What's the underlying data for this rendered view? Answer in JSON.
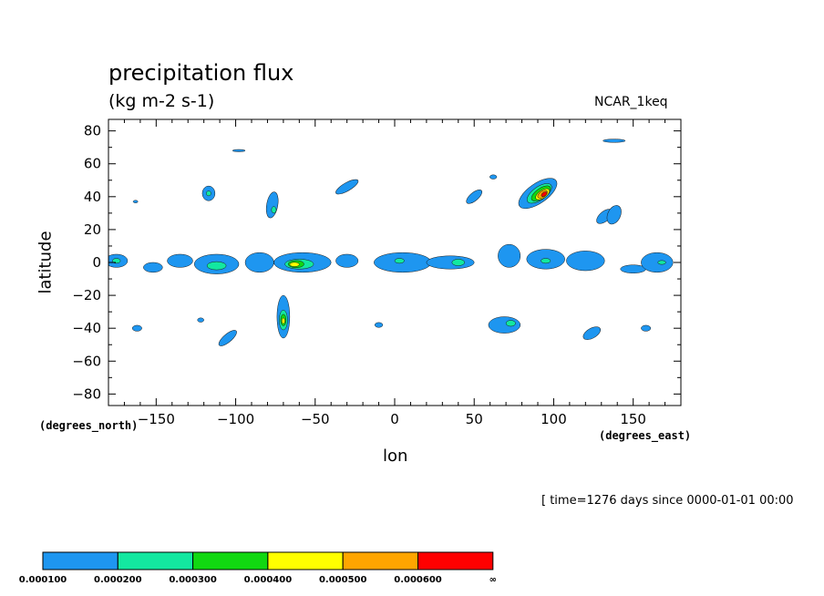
{
  "chart_data": {
    "type": "heatmap",
    "title": "precipitation flux",
    "units": "(kg m-2 s-1)",
    "source_label": "NCAR_1keq",
    "xlabel": "lon",
    "ylabel": "latitude",
    "x_unit_label": "(degrees_east)",
    "y_unit_label": "(degrees_north)",
    "xlim": [
      -180,
      180
    ],
    "ylim": [
      -87,
      87
    ],
    "x_ticks": [
      -150,
      -100,
      -50,
      0,
      50,
      100,
      150
    ],
    "x_tick_labels": [
      "−150",
      "−100",
      "−50",
      "0",
      "50",
      "100",
      "150"
    ],
    "y_ticks": [
      80,
      60,
      40,
      20,
      0,
      -20,
      -40,
      -60,
      -80
    ],
    "y_tick_labels": [
      "80",
      "60",
      "40",
      "20",
      "0",
      "−20",
      "−40",
      "−60",
      "−80"
    ],
    "grid": false,
    "legend": {
      "placement": "bottom-left",
      "colors": [
        "#1e96f0",
        "#13e8a0",
        "#11d811",
        "#ffff00",
        "#ffa500",
        "#ff0000"
      ],
      "boundary_labels": [
        "0.000100",
        "0.000200",
        "0.000300",
        "0.000400",
        "0.000500",
        "0.000600",
        "∞"
      ]
    },
    "regions": [
      {
        "level": 1,
        "lon": 90,
        "lat": 42,
        "rx": 14,
        "ry": 6,
        "rot": -35
      },
      {
        "level": 2,
        "lon": 91,
        "lat": 42,
        "rx": 9,
        "ry": 4,
        "rot": -35
      },
      {
        "level": 3,
        "lon": 92,
        "lat": 42,
        "rx": 7,
        "ry": 3,
        "rot": -35
      },
      {
        "level": 4,
        "lon": 93,
        "lat": 41.5,
        "rx": 5,
        "ry": 2.4,
        "rot": -35
      },
      {
        "level": 5,
        "lon": 93,
        "lat": 41.5,
        "rx": 3.5,
        "ry": 1.8,
        "rot": -35
      },
      {
        "level": 6,
        "lon": 94,
        "lat": 41.5,
        "rx": 2,
        "ry": 1.1,
        "rot": -35
      },
      {
        "level": 1,
        "lon": -70,
        "lat": -33,
        "rx": 4,
        "ry": 13,
        "rot": 0
      },
      {
        "level": 2,
        "lon": -70,
        "lat": -35,
        "rx": 2.6,
        "ry": 6,
        "rot": 0
      },
      {
        "level": 3,
        "lon": -70,
        "lat": -35,
        "rx": 1.7,
        "ry": 3.5,
        "rot": 0
      },
      {
        "level": 4,
        "lon": -70,
        "lat": -35.5,
        "rx": 1,
        "ry": 1.7,
        "rot": 0
      },
      {
        "level": 1,
        "lon": -58,
        "lat": 0,
        "rx": 18,
        "ry": 6,
        "rot": 0
      },
      {
        "level": 2,
        "lon": -60,
        "lat": -1,
        "rx": 9,
        "ry": 3,
        "rot": 0
      },
      {
        "level": 3,
        "lon": -62,
        "lat": -1,
        "rx": 5,
        "ry": 2.2,
        "rot": 0
      },
      {
        "level": 4,
        "lon": -63,
        "lat": -1.2,
        "rx": 3,
        "ry": 1.3,
        "rot": 0
      },
      {
        "level": 1,
        "lon": -112,
        "lat": -1,
        "rx": 14,
        "ry": 6,
        "rot": 0
      },
      {
        "level": 2,
        "lon": -112,
        "lat": -2,
        "rx": 6,
        "ry": 2.5,
        "rot": 0
      },
      {
        "level": 1,
        "lon": -175,
        "lat": 1,
        "rx": 7,
        "ry": 4,
        "rot": 0
      },
      {
        "level": 2,
        "lon": -175,
        "lat": 1,
        "rx": 2.5,
        "ry": 1.5,
        "rot": 0
      },
      {
        "level": 1,
        "lon": -152,
        "lat": -3,
        "rx": 6,
        "ry": 3,
        "rot": 0
      },
      {
        "level": 1,
        "lon": -135,
        "lat": 1,
        "rx": 8,
        "ry": 4,
        "rot": 0
      },
      {
        "level": 1,
        "lon": -85,
        "lat": 0,
        "rx": 9,
        "ry": 6,
        "rot": 0
      },
      {
        "level": 1,
        "lon": -30,
        "lat": 1,
        "rx": 7,
        "ry": 4,
        "rot": 0
      },
      {
        "level": 1,
        "lon": 5,
        "lat": 0,
        "rx": 18,
        "ry": 6,
        "rot": 0
      },
      {
        "level": 2,
        "lon": 3,
        "lat": 1,
        "rx": 3,
        "ry": 1.5,
        "rot": 0
      },
      {
        "level": 1,
        "lon": 35,
        "lat": 0,
        "rx": 15,
        "ry": 4,
        "rot": 0
      },
      {
        "level": 2,
        "lon": 40,
        "lat": 0,
        "rx": 4,
        "ry": 2,
        "rot": 0
      },
      {
        "level": 1,
        "lon": 72,
        "lat": 4,
        "rx": 7,
        "ry": 7,
        "rot": 0
      },
      {
        "level": 1,
        "lon": 95,
        "lat": 2,
        "rx": 12,
        "ry": 6,
        "rot": 0
      },
      {
        "level": 2,
        "lon": 95,
        "lat": 1,
        "rx": 3,
        "ry": 1.5,
        "rot": 0
      },
      {
        "level": 1,
        "lon": 120,
        "lat": 1,
        "rx": 12,
        "ry": 6,
        "rot": 0
      },
      {
        "level": 1,
        "lon": 150,
        "lat": -4,
        "rx": 8,
        "ry": 2.5,
        "rot": 0
      },
      {
        "level": 1,
        "lon": 165,
        "lat": 0,
        "rx": 10,
        "ry": 6,
        "rot": 0
      },
      {
        "level": 2,
        "lon": 168,
        "lat": 0,
        "rx": 2.5,
        "ry": 1.2,
        "rot": 0
      },
      {
        "level": 1,
        "lon": -117,
        "lat": 42,
        "rx": 4,
        "ry": 4.5,
        "rot": 0
      },
      {
        "level": 2,
        "lon": -117,
        "lat": 42,
        "rx": 1.5,
        "ry": 1.5,
        "rot": 0
      },
      {
        "level": 1,
        "lon": -77,
        "lat": 35,
        "rx": 3.5,
        "ry": 8,
        "rot": 10
      },
      {
        "level": 2,
        "lon": -76,
        "lat": 32,
        "rx": 1.5,
        "ry": 2,
        "rot": 0
      },
      {
        "level": 1,
        "lon": -30,
        "lat": 46,
        "rx": 8,
        "ry": 2.5,
        "rot": -30
      },
      {
        "level": 1,
        "lon": 50,
        "lat": 40,
        "rx": 6,
        "ry": 2.5,
        "rot": -40
      },
      {
        "level": 1,
        "lon": 132,
        "lat": 28,
        "rx": 6,
        "ry": 3,
        "rot": -40
      },
      {
        "level": 1,
        "lon": 138,
        "lat": 29,
        "rx": 4,
        "ry": 6,
        "rot": 25
      },
      {
        "level": 1,
        "lon": 69,
        "lat": -38,
        "rx": 10,
        "ry": 5,
        "rot": 0
      },
      {
        "level": 2,
        "lon": 73,
        "lat": -37,
        "rx": 3,
        "ry": 1.8,
        "rot": 0
      },
      {
        "level": 1,
        "lon": -105,
        "lat": -46,
        "rx": 7,
        "ry": 2.5,
        "rot": -40
      },
      {
        "level": 1,
        "lon": 124,
        "lat": -43,
        "rx": 6,
        "ry": 3,
        "rot": -30
      },
      {
        "level": 1,
        "lon": -162,
        "lat": -40,
        "rx": 3,
        "ry": 1.8,
        "rot": 0
      },
      {
        "level": 1,
        "lon": 158,
        "lat": -40,
        "rx": 3,
        "ry": 1.8,
        "rot": 0
      },
      {
        "level": 1,
        "lon": -122,
        "lat": -35,
        "rx": 2,
        "ry": 1.3,
        "rot": 0
      },
      {
        "level": 1,
        "lon": -10,
        "lat": -38,
        "rx": 2.5,
        "ry": 1.5,
        "rot": 0
      },
      {
        "level": 1,
        "lon": 138,
        "lat": 74,
        "rx": 7,
        "ry": 1,
        "rot": 0
      },
      {
        "level": 1,
        "lon": -98,
        "lat": 68,
        "rx": 4,
        "ry": 0.7,
        "rot": 0
      },
      {
        "level": 1,
        "lon": 62,
        "lat": 52,
        "rx": 2.2,
        "ry": 1.3,
        "rot": 0
      },
      {
        "level": 1,
        "lon": -163,
        "lat": 37,
        "rx": 1.5,
        "ry": 0.8,
        "rot": 0
      }
    ]
  },
  "timestamp": "[ time=1276 days since 0000-01-01 00:00"
}
